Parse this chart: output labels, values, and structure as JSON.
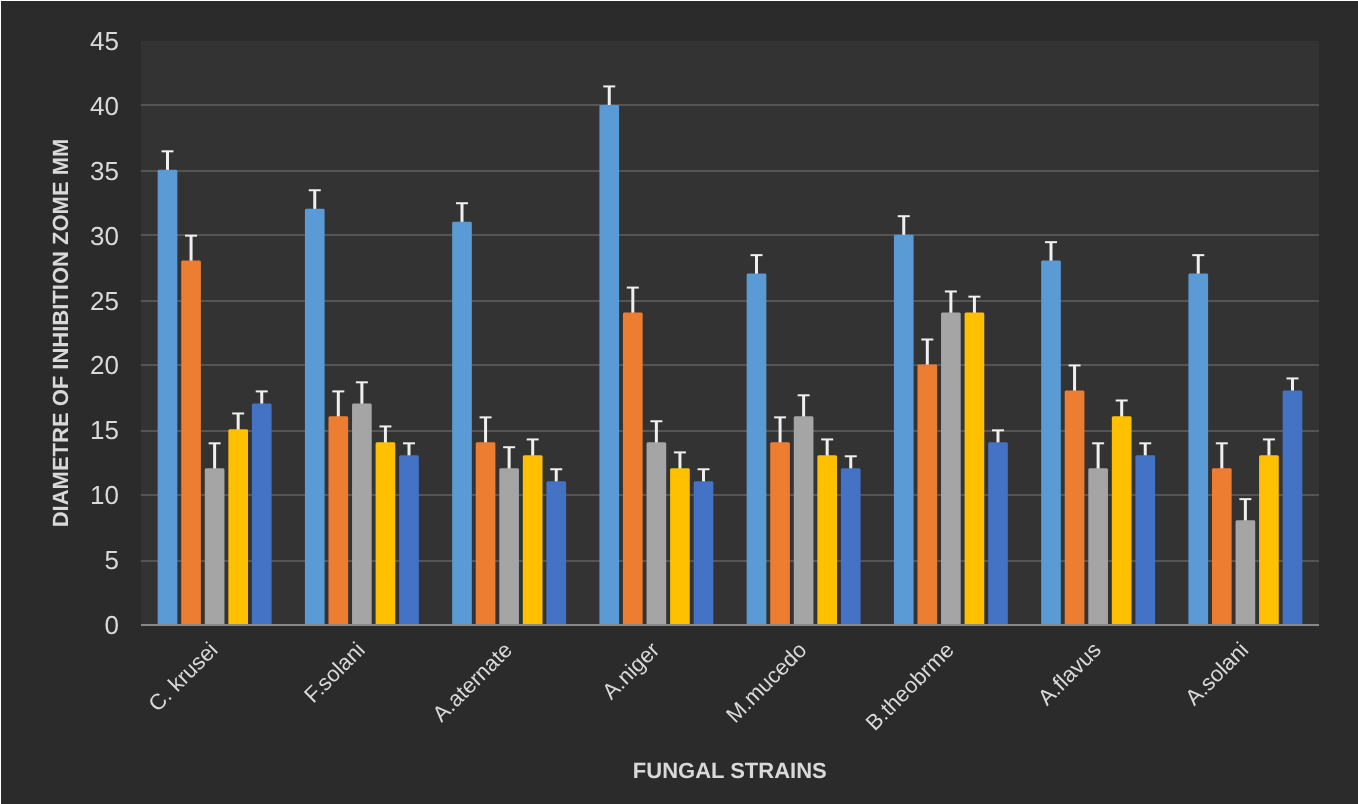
{
  "chart_data": {
    "type": "bar",
    "xlabel": "FUNGAL STRAINS",
    "ylabel": "DIAMETRE OF INHIBITION ZOME MM",
    "categories": [
      "C. krusei",
      "F.solani",
      "A.aternate",
      "A.niger",
      "M.mucedo",
      "B.theobrme",
      "A.flavus",
      "A.solani"
    ],
    "series": [
      {
        "color": "#5b9bd5",
        "values": [
          35,
          32,
          31,
          40,
          27,
          30,
          28,
          27
        ],
        "errors": [
          1.5,
          1.5,
          1.5,
          1.5,
          1.5,
          1.5,
          1.5,
          1.5
        ]
      },
      {
        "color": "#ed7d31",
        "values": [
          28,
          16,
          14,
          24,
          14,
          20,
          18,
          12
        ],
        "errors": [
          2,
          2,
          2,
          2,
          2,
          2,
          2,
          2
        ]
      },
      {
        "color": "#a5a5a5",
        "values": [
          12,
          17,
          12,
          14,
          16,
          24,
          12,
          8
        ],
        "errors": [
          2,
          1.7,
          1.7,
          1.7,
          1.7,
          1.7,
          2,
          1.7
        ]
      },
      {
        "color": "#ffc000",
        "values": [
          15,
          14,
          13,
          12,
          13,
          24,
          16,
          13
        ],
        "errors": [
          1.3,
          1.3,
          1.3,
          1.3,
          1.3,
          1.3,
          1.3,
          1.3
        ]
      },
      {
        "color": "#4472c4",
        "values": [
          17,
          13,
          11,
          11,
          12,
          14,
          13,
          18
        ],
        "errors": [
          1,
          1,
          1,
          1,
          1,
          1,
          1,
          1
        ]
      }
    ],
    "ylim": [
      0,
      45
    ],
    "yticks": [
      0,
      5,
      10,
      15,
      20,
      25,
      30,
      35,
      40,
      45
    ],
    "grid": "y"
  }
}
